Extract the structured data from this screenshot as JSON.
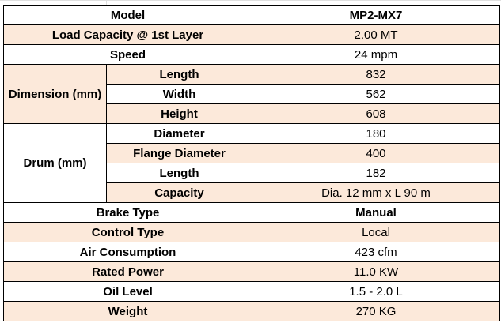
{
  "colors": {
    "shaded_row": "#fce9da",
    "border": "#000000"
  },
  "rows": [
    {
      "label": "Model",
      "value": "MP2-MX7"
    },
    {
      "label": "Load Capacity @ 1st Layer",
      "value": "2.00 MT"
    },
    {
      "label": "Speed",
      "value": "24 mpm"
    },
    {
      "group": "Dimension (mm)",
      "label": "Length",
      "value": "832"
    },
    {
      "label": "Width",
      "value": "562"
    },
    {
      "label": "Height",
      "value": "608"
    },
    {
      "group": "Drum (mm)",
      "label": "Diameter",
      "value": "180"
    },
    {
      "label": "Flange Diameter",
      "value": "400"
    },
    {
      "label": "Length",
      "value": "182"
    },
    {
      "label": "Capacity",
      "value": "Dia. 12 mm x L 90 m"
    },
    {
      "label": "Brake Type",
      "value": "Manual"
    },
    {
      "label": "Control Type",
      "value": "Local"
    },
    {
      "label": "Air Consumption",
      "value": "423 cfm"
    },
    {
      "label": "Rated Power",
      "value": "11.0 KW"
    },
    {
      "label": "Oil Level",
      "value": "1.5 - 2.0 L"
    },
    {
      "label": "Weight",
      "value": "270 KG"
    }
  ]
}
